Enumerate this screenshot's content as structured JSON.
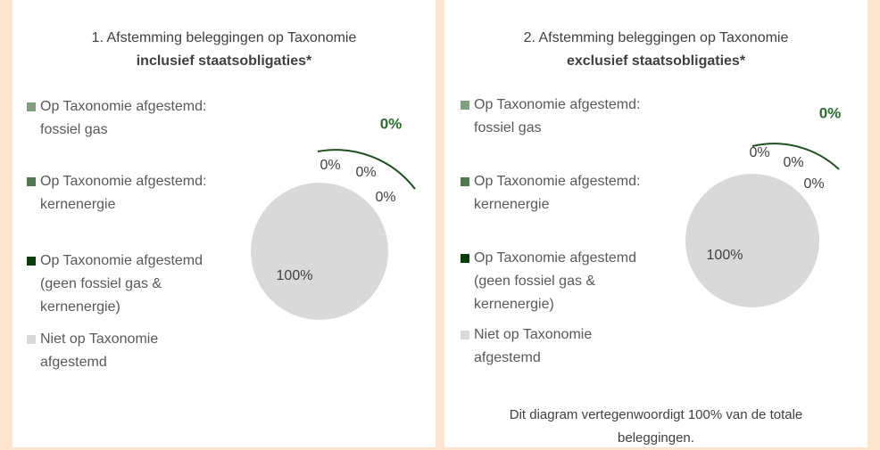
{
  "chart_data": [
    {
      "type": "pie",
      "title": "1. Afstemming beleggingen op Taxonomie",
      "subtitle": "inclusief staatsobligaties*",
      "categories": [
        "Op Taxonomie afgestemd: fossiel gas",
        "Op Taxonomie afgestemd: kernenergie",
        "Op Taxonomie afgestemd (geen fossiel gas & kernenergie)",
        "Niet op Taxonomie afgestemd"
      ],
      "values": [
        0,
        0,
        0,
        100
      ],
      "value_labels": [
        "0%",
        "0%",
        "0%",
        "100%"
      ],
      "colors": [
        "#7f9f7e",
        "#4f7a4f",
        "#0b3d0b",
        "#d9d9d9"
      ],
      "annotation": "0%"
    },
    {
      "type": "pie",
      "title": "2. Afstemming beleggingen op Taxonomie",
      "subtitle": "exclusief staatsobligaties*",
      "categories": [
        "Op Taxonomie afgestemd: fossiel gas",
        "Op Taxonomie afgestemd: kernenergie",
        "Op Taxonomie afgestemd (geen fossiel gas & kernenergie)",
        "Niet op Taxonomie afgestemd"
      ],
      "values": [
        0,
        0,
        0,
        100
      ],
      "value_labels": [
        "0%",
        "0%",
        "0%",
        "100%"
      ],
      "colors": [
        "#7f9f7e",
        "#4f7a4f",
        "#0b3d0b",
        "#d9d9d9"
      ],
      "annotation": "0%",
      "note": "Dit diagram vertegenwoordigt 100% van de totale beleggingen."
    }
  ]
}
